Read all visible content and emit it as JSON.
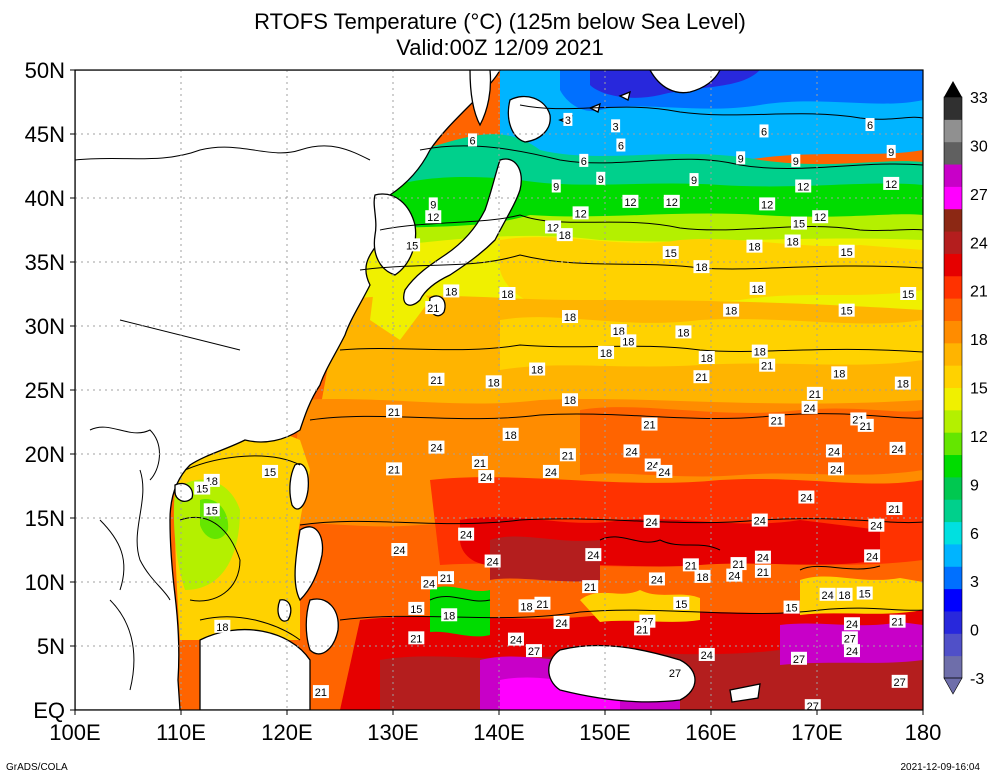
{
  "title": {
    "line1": "RTOFS Temperature (°C) (125m below Sea Level)",
    "line2": "Valid:00Z 12/09 2021"
  },
  "map": {
    "lon_ticks": [
      "100E",
      "110E",
      "120E",
      "130E",
      "140E",
      "150E",
      "160E",
      "170E",
      "180"
    ],
    "lat_ticks": [
      "EQ",
      "5N",
      "10N",
      "15N",
      "20N",
      "25N",
      "30N",
      "35N",
      "40N",
      "45N",
      "50N"
    ],
    "lon_range": [
      100,
      180
    ],
    "lat_range": [
      0,
      50
    ],
    "grid": "dotted"
  },
  "colorbar": {
    "labels": [
      "-3",
      "0",
      "3",
      "6",
      "9",
      "12",
      "15",
      "18",
      "21",
      "24",
      "27",
      "30",
      "33"
    ],
    "colors": [
      "#6e6eaa",
      "#5050c8",
      "#2828dc",
      "#0000ff",
      "#0070ff",
      "#00b4ff",
      "#00e0e0",
      "#00d08c",
      "#00c850",
      "#00dc00",
      "#64e600",
      "#b4f000",
      "#f0f000",
      "#ffd200",
      "#ffb400",
      "#ff8c00",
      "#ff6400",
      "#ff3200",
      "#e60000",
      "#b41e1e",
      "#8c2814",
      "#ff00ff",
      "#c800c8",
      "#606060",
      "#909090",
      "#303030"
    ]
  },
  "contour_labels": [
    {
      "text": "3",
      "lon": 146.5,
      "lat": 46.1
    },
    {
      "text": "3",
      "lon": 151,
      "lat": 45.6
    },
    {
      "text": "6",
      "lon": 137.5,
      "lat": 44.5
    },
    {
      "text": "6",
      "lon": 151.5,
      "lat": 44.1
    },
    {
      "text": "6",
      "lon": 165,
      "lat": 45.2
    },
    {
      "text": "6",
      "lon": 175,
      "lat": 45.7
    },
    {
      "text": "6",
      "lon": 148,
      "lat": 42.9
    },
    {
      "text": "9",
      "lon": 162.8,
      "lat": 43.1
    },
    {
      "text": "9",
      "lon": 168,
      "lat": 42.9
    },
    {
      "text": "9",
      "lon": 177,
      "lat": 43.6
    },
    {
      "text": "9",
      "lon": 149.6,
      "lat": 41.5
    },
    {
      "text": "9",
      "lon": 145.4,
      "lat": 40.9
    },
    {
      "text": "9",
      "lon": 158.4,
      "lat": 41.4
    },
    {
      "text": "9",
      "lon": 133.8,
      "lat": 39.5
    },
    {
      "text": "12",
      "lon": 133.8,
      "lat": 38.5
    },
    {
      "text": "12",
      "lon": 152.4,
      "lat": 39.7
    },
    {
      "text": "12",
      "lon": 156.3,
      "lat": 39.7
    },
    {
      "text": "12",
      "lon": 147.7,
      "lat": 38.8
    },
    {
      "text": "12",
      "lon": 145.1,
      "lat": 37.7
    },
    {
      "text": "12",
      "lon": 165.3,
      "lat": 39.5
    },
    {
      "text": "12",
      "lon": 168.7,
      "lat": 40.9
    },
    {
      "text": "12",
      "lon": 177,
      "lat": 41.1
    },
    {
      "text": "12",
      "lon": 170.3,
      "lat": 38.5
    },
    {
      "text": "18",
      "lon": 146.2,
      "lat": 37.1
    },
    {
      "text": "15",
      "lon": 168.3,
      "lat": 38.0
    },
    {
      "text": "15",
      "lon": 131.8,
      "lat": 36.3
    },
    {
      "text": "18",
      "lon": 167.7,
      "lat": 36.6
    },
    {
      "text": "18",
      "lon": 164.1,
      "lat": 36.2
    },
    {
      "text": "15",
      "lon": 156.2,
      "lat": 35.7
    },
    {
      "text": "15",
      "lon": 172.8,
      "lat": 35.8
    },
    {
      "text": "18",
      "lon": 159.1,
      "lat": 34.6
    },
    {
      "text": "18",
      "lon": 135.5,
      "lat": 32.7
    },
    {
      "text": "18",
      "lon": 140.8,
      "lat": 32.5
    },
    {
      "text": "18",
      "lon": 164.4,
      "lat": 32.9
    },
    {
      "text": "21",
      "lon": 133.8,
      "lat": 31.4
    },
    {
      "text": "15",
      "lon": 178.6,
      "lat": 32.5
    },
    {
      "text": "18",
      "lon": 146.7,
      "lat": 30.7
    },
    {
      "text": "18",
      "lon": 161.9,
      "lat": 31.2
    },
    {
      "text": "15",
      "lon": 172.8,
      "lat": 31.2
    },
    {
      "text": "18",
      "lon": 151.3,
      "lat": 29.6
    },
    {
      "text": "18",
      "lon": 157.4,
      "lat": 29.5
    },
    {
      "text": "18",
      "lon": 152.2,
      "lat": 28.8
    },
    {
      "text": "18",
      "lon": 150.1,
      "lat": 27.9
    },
    {
      "text": "18",
      "lon": 164.6,
      "lat": 28.0
    },
    {
      "text": "18",
      "lon": 159.6,
      "lat": 27.5
    },
    {
      "text": "21",
      "lon": 165.3,
      "lat": 26.9
    },
    {
      "text": "18",
      "lon": 143.6,
      "lat": 26.6
    },
    {
      "text": "18",
      "lon": 172.1,
      "lat": 26.3
    },
    {
      "text": "21",
      "lon": 134.1,
      "lat": 25.8
    },
    {
      "text": "18",
      "lon": 139.5,
      "lat": 25.6
    },
    {
      "text": "21",
      "lon": 159.1,
      "lat": 26.0
    },
    {
      "text": "18",
      "lon": 178.1,
      "lat": 25.5
    },
    {
      "text": "21",
      "lon": 169.8,
      "lat": 24.7
    },
    {
      "text": "24",
      "lon": 169.3,
      "lat": 23.6
    },
    {
      "text": "18",
      "lon": 146.7,
      "lat": 24.2
    },
    {
      "text": "21",
      "lon": 130.1,
      "lat": 23.3
    },
    {
      "text": "21",
      "lon": 173.9,
      "lat": 22.7
    },
    {
      "text": "21",
      "lon": 166.2,
      "lat": 22.6
    },
    {
      "text": "21",
      "lon": 154.2,
      "lat": 22.3
    },
    {
      "text": "21",
      "lon": 174.6,
      "lat": 22.2
    },
    {
      "text": "18",
      "lon": 141.1,
      "lat": 21.5
    },
    {
      "text": "24",
      "lon": 134.1,
      "lat": 20.5
    },
    {
      "text": "24",
      "lon": 177.6,
      "lat": 20.4
    },
    {
      "text": "24",
      "lon": 152.5,
      "lat": 20.2
    },
    {
      "text": "21",
      "lon": 146.5,
      "lat": 19.9
    },
    {
      "text": "24",
      "lon": 171.6,
      "lat": 20.2
    },
    {
      "text": "24",
      "lon": 154.5,
      "lat": 19.1
    },
    {
      "text": "21",
      "lon": 138.2,
      "lat": 19.3
    },
    {
      "text": "24",
      "lon": 171.8,
      "lat": 18.8
    },
    {
      "text": "21",
      "lon": 130.1,
      "lat": 18.8
    },
    {
      "text": "24",
      "lon": 155.6,
      "lat": 18.6
    },
    {
      "text": "24",
      "lon": 144.9,
      "lat": 18.6
    },
    {
      "text": "24",
      "lon": 138.8,
      "lat": 18.2
    },
    {
      "text": "15",
      "lon": 118.4,
      "lat": 18.6
    },
    {
      "text": "18",
      "lon": 112.9,
      "lat": 17.9
    },
    {
      "text": "15",
      "lon": 112.0,
      "lat": 17.3
    },
    {
      "text": "24",
      "lon": 169.0,
      "lat": 16.6
    },
    {
      "text": "21",
      "lon": 177.3,
      "lat": 15.7
    },
    {
      "text": "15",
      "lon": 112.9,
      "lat": 15.6
    },
    {
      "text": "24",
      "lon": 164.6,
      "lat": 14.8
    },
    {
      "text": "24",
      "lon": 154.4,
      "lat": 14.7
    },
    {
      "text": "24",
      "lon": 175.6,
      "lat": 14.4
    },
    {
      "text": "24",
      "lon": 136.9,
      "lat": 13.7
    },
    {
      "text": "24",
      "lon": 130.6,
      "lat": 12.5
    },
    {
      "text": "24",
      "lon": 148.9,
      "lat": 12.1
    },
    {
      "text": "24",
      "lon": 175.2,
      "lat": 12.0
    },
    {
      "text": "24",
      "lon": 164.9,
      "lat": 11.9
    },
    {
      "text": "24",
      "lon": 139.4,
      "lat": 11.6
    },
    {
      "text": "21",
      "lon": 158.1,
      "lat": 11.3
    },
    {
      "text": "21",
      "lon": 162.6,
      "lat": 11.4
    },
    {
      "text": "21",
      "lon": 164.9,
      "lat": 10.8
    },
    {
      "text": "24",
      "lon": 162.2,
      "lat": 10.5
    },
    {
      "text": "18",
      "lon": 159.2,
      "lat": 10.4
    },
    {
      "text": "24",
      "lon": 154.9,
      "lat": 10.2
    },
    {
      "text": "21",
      "lon": 135.0,
      "lat": 10.3
    },
    {
      "text": "24",
      "lon": 133.4,
      "lat": 9.9
    },
    {
      "text": "21",
      "lon": 148.6,
      "lat": 9.6
    },
    {
      "text": "24",
      "lon": 171.0,
      "lat": 9.0
    },
    {
      "text": "18",
      "lon": 172.6,
      "lat": 9.0
    },
    {
      "text": "15",
      "lon": 174.5,
      "lat": 9.1
    },
    {
      "text": "21",
      "lon": 144.1,
      "lat": 8.3
    },
    {
      "text": "18",
      "lon": 142.6,
      "lat": 8.1
    },
    {
      "text": "15",
      "lon": 157.2,
      "lat": 8.3
    },
    {
      "text": "15",
      "lon": 167.6,
      "lat": 8.0
    },
    {
      "text": "15",
      "lon": 132.2,
      "lat": 7.9
    },
    {
      "text": "18",
      "lon": 135.3,
      "lat": 7.4
    },
    {
      "text": "24",
      "lon": 145.9,
      "lat": 6.8
    },
    {
      "text": "27",
      "lon": 154.0,
      "lat": 6.9
    },
    {
      "text": "21",
      "lon": 153.5,
      "lat": 6.3
    },
    {
      "text": "24",
      "lon": 173.3,
      "lat": 6.7
    },
    {
      "text": "21",
      "lon": 177.6,
      "lat": 6.9
    },
    {
      "text": "21",
      "lon": 132.2,
      "lat": 5.6
    },
    {
      "text": "24",
      "lon": 141.6,
      "lat": 5.5
    },
    {
      "text": "27",
      "lon": 173.1,
      "lat": 5.6
    },
    {
      "text": "18",
      "lon": 113.9,
      "lat": 6.5
    },
    {
      "text": "27",
      "lon": 143.3,
      "lat": 4.6
    },
    {
      "text": "24",
      "lon": 159.6,
      "lat": 4.3
    },
    {
      "text": "27",
      "lon": 168.3,
      "lat": 4.0
    },
    {
      "text": "24",
      "lon": 173.3,
      "lat": 4.6
    },
    {
      "text": "27",
      "lon": 156.6,
      "lat": 2.9
    },
    {
      "text": "27",
      "lon": 177.8,
      "lat": 2.2
    },
    {
      "text": "21",
      "lon": 123.2,
      "lat": 1.4
    },
    {
      "text": "27",
      "lon": 169.6,
      "lat": 0.3
    }
  ],
  "footer": {
    "credit": "GrADS/COLA",
    "timestamp": "2021-12-09-16:04"
  }
}
